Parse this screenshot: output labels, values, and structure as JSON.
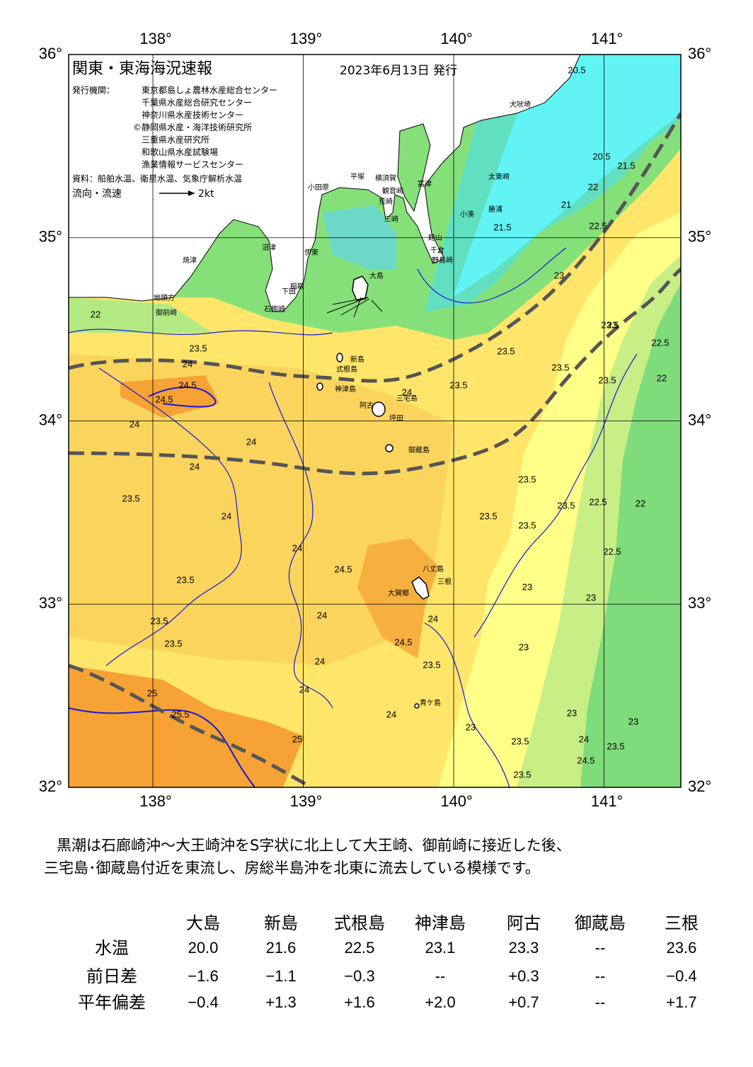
{
  "map": {
    "title": "関東・東海海況速報",
    "date": "2023年6月13日 発行",
    "issuers_label": "発行機関：",
    "issuers": [
      "東京都島しょ農林水産総合センター",
      "千葉県水産総合研究センター",
      "神奈川県水産技術センター",
      "©静岡県水産・海洋技術研究所",
      "三重県水産研究所",
      "和歌山県水産試験場",
      "漁業情報サービスセンター"
    ],
    "source": "資料：船舶水温、衛星水温、気象庁解析水温",
    "legend_label": "流向・流速",
    "legend_scale": "2kt",
    "xlim": [
      137.44,
      141.51
    ],
    "ylim": [
      32,
      36
    ],
    "lon_ticks": [
      {
        "value": 138,
        "label": "138°"
      },
      {
        "value": 139,
        "label": "139°"
      },
      {
        "value": 140,
        "label": "140°"
      },
      {
        "value": 141,
        "label": "141°"
      }
    ],
    "lat_ticks": [
      {
        "value": 32,
        "label": "32°"
      },
      {
        "value": 33,
        "label": "33°"
      },
      {
        "value": 34,
        "label": "34°"
      },
      {
        "value": 35,
        "label": "35°"
      },
      {
        "value": 36,
        "label": "36°"
      }
    ],
    "places": [
      "犬吠埼",
      "太東崎",
      "勝浦",
      "小湊",
      "富津",
      "館山",
      "千倉",
      "野島崎",
      "横須賀",
      "観音崎",
      "平塚",
      "小田原",
      "荒崎",
      "三崎",
      "沼津",
      "伊東",
      "稲取",
      "下田",
      "石廊崎",
      "焼津",
      "地頭方",
      "御前崎",
      "大島",
      "新島",
      "式根島",
      "神津島",
      "三宅島",
      "阿古",
      "坪田",
      "御蔵島",
      "八丈島",
      "三根",
      "大賀郷",
      "青ケ島"
    ],
    "isotherm_labels": [
      20.5,
      20.5,
      21.5,
      21.5,
      21,
      22,
      22,
      22,
      22,
      22.5,
      22.5,
      22.5,
      22.5,
      23,
      23,
      23,
      23,
      23,
      23,
      23,
      23,
      23.5,
      23.5,
      23.5,
      23.5,
      23.5,
      23.5,
      23.5,
      23.5,
      23.5,
      23.5,
      23.5,
      23.5,
      23.5,
      23.5,
      23.5,
      23.5,
      23.5,
      23.5,
      24,
      24,
      24,
      24,
      24,
      24,
      24,
      24,
      24,
      24,
      24,
      24,
      24,
      24.5,
      24.5,
      24.5,
      24.5,
      24.5,
      25,
      25,
      25.5
    ]
  },
  "summary": [
    "黒潮は石廊崎沖～大王崎沖をS字状に北上して大王崎、御前崎に接近した後、",
    "三宅島･御蔵島付近を東流し、房総半島沖を北東に流去している模様です。"
  ],
  "table": {
    "columns": [
      "大島",
      "新島",
      "式根島",
      "神津島",
      "阿古",
      "御蔵島",
      "三根"
    ],
    "rows": [
      {
        "label": "水温",
        "cells": [
          "20.0",
          "21.6",
          "22.5",
          "23.1",
          "23.3",
          "--",
          "23.6"
        ]
      },
      {
        "label": "前日差",
        "cells": [
          "−1.6",
          "−1.1",
          "−0.3",
          "--",
          "+0.3",
          "--",
          "−0.4"
        ]
      },
      {
        "label": "平年偏差",
        "cells": [
          "−0.4",
          "+1.3",
          "+1.6",
          "+2.0",
          "+0.7",
          "--",
          "+1.7"
        ]
      }
    ]
  }
}
